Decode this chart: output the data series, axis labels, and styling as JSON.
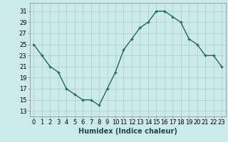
{
  "x": [
    0,
    1,
    2,
    3,
    4,
    5,
    6,
    7,
    8,
    9,
    10,
    11,
    12,
    13,
    14,
    15,
    16,
    17,
    18,
    19,
    20,
    21,
    22,
    23
  ],
  "y": [
    25,
    23,
    21,
    20,
    17,
    16,
    15,
    15,
    14,
    17,
    20,
    24,
    26,
    28,
    29,
    31,
    31,
    30,
    29,
    26,
    25,
    23,
    23,
    21
  ],
  "line_color": "#1a6b5a",
  "marker": "+",
  "marker_size": 3,
  "marker_linewidth": 1.0,
  "bg_color": "#cdeaea",
  "grid_color": "#b0d0d0",
  "xlabel": "Humidex (Indice chaleur)",
  "xlabel_fontsize": 7,
  "ylabel_ticks": [
    13,
    15,
    17,
    19,
    21,
    23,
    25,
    27,
    29,
    31
  ],
  "ylim": [
    12.0,
    32.5
  ],
  "xlim": [
    -0.5,
    23.5
  ],
  "tick_fontsize": 6,
  "line_width": 1.0
}
